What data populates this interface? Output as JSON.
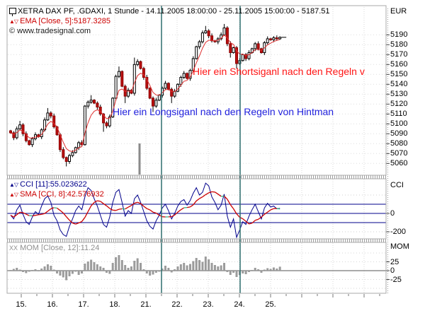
{
  "header": {
    "title": "XETRA DAX PF, .GDAXI, 1 Stunde - 14.11.2005 18:00:00 - 25.11.2005 15:00:00 - 5187.51",
    "ema_legend": "EMA [Close, 5]:5187.3285",
    "copyright": "© www.tradesignal.com",
    "currency_label": "EUR"
  },
  "icons": {
    "indicator_glyph": "▲▽",
    "mom_glyph": "XX"
  },
  "annotations": {
    "short_signal": "Hier ein Shortsiganl nach den Regeln v",
    "long_signal": "Hier ein Longsiganl nach den Regeln von Hintman"
  },
  "panes": {
    "cci": {
      "axis_title": "CCI",
      "legend_cci": "CCI [11]:55.023622",
      "legend_sma": "SMA [CCI, 8]:42.576932",
      "tick_values": [
        0,
        -200
      ]
    },
    "mom": {
      "axis_title": "MOM",
      "legend": "MOM [Close, 12]:11.24",
      "tick_values": [
        25,
        0,
        -25
      ]
    }
  },
  "colors": {
    "up_candle": "#ffffff",
    "down_candle": "#bb1111",
    "down_candle_border": "#8d0000",
    "wick": "#000000",
    "ema": "#e03030",
    "cci_line": "#00008b",
    "cci_levels": "#00008b",
    "sma_line": "#cc0000",
    "sma_dash": "#2fae7e",
    "mom_bar": "#9b9b9b",
    "mom_zero": "#555555",
    "marker_line": "#2e6e6e",
    "grid": "#d9d9d9",
    "border": "#a8a8a8",
    "annotation_red": "#ff1515",
    "annotation_blue": "#2222dd",
    "spike": "#8a8a8a"
  },
  "chart_data": [
    {
      "id": "price",
      "type": "candlestick",
      "title": "XETRA DAX PF hourly",
      "ylabel": "EUR",
      "price_ticks": [
        5190,
        5180,
        5170,
        5160,
        5150,
        5140,
        5130,
        5120,
        5110,
        5100,
        5090,
        5080,
        5070,
        5060
      ],
      "ylim": [
        5048,
        5205
      ],
      "first_open": 5093,
      "closes": [
        5091,
        5086,
        5095,
        5099,
        5090,
        5083,
        5079,
        5085,
        5089,
        5087,
        5094,
        5104,
        5111,
        5108,
        5097,
        5089,
        5074,
        5066,
        5062,
        5068,
        5071,
        5076,
        5081,
        5079,
        5118,
        5122,
        5124,
        5121,
        5117,
        5110,
        5101,
        5098,
        5107,
        5126,
        5148,
        5153,
        5138,
        5128,
        5134,
        5131,
        5160,
        5163,
        5156,
        5147,
        5136,
        5126,
        5118,
        5124,
        5129,
        5136,
        5141,
        5135,
        5128,
        5133,
        5140,
        5147,
        5151,
        5146,
        5154,
        5166,
        5178,
        5183,
        5192,
        5194,
        5189,
        5184,
        5183,
        5186,
        5190,
        5197,
        5181,
        5172,
        5177,
        5161,
        5164,
        5170,
        5166,
        5172,
        5176,
        5181,
        5176,
        5172,
        5182,
        5186,
        5185,
        5187,
        5186,
        5187.5
      ],
      "wick_high_overrides": {
        "3": 5103,
        "12": 5116,
        "26": 5129,
        "35": 5158,
        "40": 5167,
        "63": 5199,
        "69": 5201
      },
      "wick_low_overrides": {
        "18": 5057,
        "30": 5092,
        "37": 5121,
        "46": 5112,
        "52": 5121,
        "71": 5167,
        "73": 5156
      },
      "ema_period": 5,
      "last_close": 5187.51,
      "marker_vlines_x": [
        228,
        339
      ]
    },
    {
      "id": "cci",
      "type": "line",
      "title": "CCI pane",
      "levels_solid": [
        100,
        0,
        -100
      ],
      "levels_dotted": [
        200,
        -200
      ],
      "sma_period": 8,
      "values": [
        -20,
        -60,
        40,
        90,
        -10,
        -90,
        -120,
        -40,
        20,
        -10,
        80,
        160,
        190,
        120,
        -20,
        -80,
        -180,
        -230,
        -250,
        -140,
        -60,
        30,
        80,
        40,
        180,
        280,
        250,
        160,
        80,
        -20,
        -120,
        -150,
        -40,
        120,
        230,
        260,
        120,
        -30,
        30,
        0,
        160,
        200,
        120,
        20,
        -80,
        -140,
        -170,
        -80,
        -20,
        60,
        100,
        30,
        -60,
        0,
        80,
        130,
        150,
        90,
        140,
        220,
        280,
        200,
        230,
        330,
        300,
        180,
        120,
        40,
        90,
        210,
        -30,
        -150,
        -60,
        -260,
        -180,
        -90,
        -120,
        -30,
        40,
        100,
        20,
        -60,
        60,
        110,
        70,
        80,
        50,
        55.02
      ]
    },
    {
      "id": "mom",
      "type": "bar",
      "title": "MOM pane",
      "levels_dotted": [
        50,
        25,
        0,
        -25,
        -50
      ],
      "values": [
        2,
        5,
        8,
        3,
        -4,
        -7,
        -3,
        2,
        4,
        -2,
        6,
        12,
        18,
        14,
        3,
        -8,
        -14,
        -19,
        -27,
        -16,
        -9,
        -3,
        -12,
        -8,
        20,
        26,
        31,
        24,
        18,
        12,
        8,
        -6,
        -9,
        22,
        38,
        44,
        30,
        16,
        8,
        12,
        28,
        35,
        22,
        4,
        -8,
        -14,
        -11,
        -6,
        -3,
        6,
        14,
        8,
        -5,
        4,
        12,
        18,
        22,
        15,
        19,
        27,
        36,
        30,
        25,
        40,
        32,
        22,
        16,
        12,
        15,
        22,
        -4,
        -12,
        -6,
        -18,
        -12,
        -8,
        -10,
        -4,
        2,
        8,
        4,
        -6,
        3,
        7,
        5,
        9,
        6,
        11.24
      ]
    }
  ],
  "x_axis": {
    "day_labels": [
      "15.",
      "16.",
      "17.",
      "18.",
      "21.",
      "22.",
      "23.",
      "24.",
      "25."
    ]
  }
}
